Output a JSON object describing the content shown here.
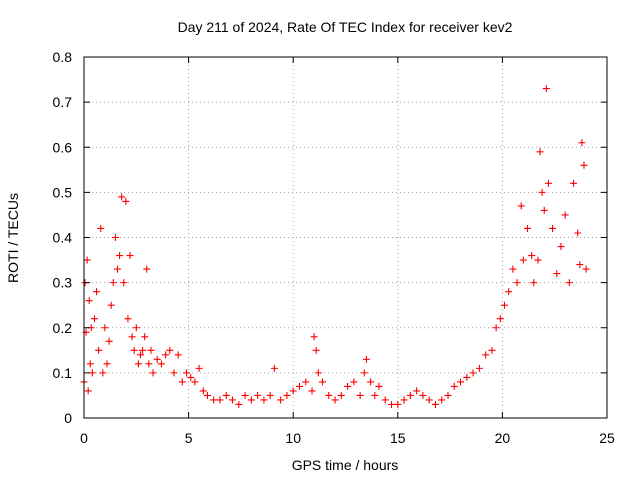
{
  "chart_data": {
    "type": "scatter",
    "title": "Day 211 of 2024, Rate Of TEC Index for receiver kev2",
    "xlabel": "GPS time / hours",
    "ylabel": "ROTI / TECUs",
    "xlim": [
      0,
      25
    ],
    "ylim": [
      0,
      0.8
    ],
    "xticks": [
      0,
      5,
      10,
      15,
      20,
      25
    ],
    "yticks": [
      0,
      0.1,
      0.2,
      0.3,
      0.4,
      0.5,
      0.6,
      0.7,
      0.8
    ],
    "xtick_labels": [
      "0",
      "5",
      "10",
      "15",
      "20",
      "25"
    ],
    "ytick_labels": [
      "0",
      "0.1",
      "0.2",
      "0.3",
      "0.4",
      "0.5",
      "0.6",
      "0.7",
      "0.8"
    ],
    "grid": true,
    "marker": "+",
    "color": "#ff0000",
    "series": [
      {
        "x": [
          0.0,
          0.05,
          0.1,
          0.15,
          0.2,
          0.25,
          0.3,
          0.35,
          0.4,
          0.5,
          0.6,
          0.7,
          0.8,
          0.9,
          1.0,
          1.1,
          1.2,
          1.3,
          1.4,
          1.5,
          1.6,
          1.7,
          1.8,
          1.9,
          2.0,
          2.1,
          2.2,
          2.3,
          2.4,
          2.5,
          2.6,
          2.7,
          2.8,
          2.9,
          3.0,
          3.1,
          3.2,
          3.3,
          3.5,
          3.7,
          3.9,
          4.1,
          4.3,
          4.5,
          4.7,
          4.9,
          5.1,
          5.3,
          5.5,
          5.7,
          5.9,
          6.2,
          6.5,
          6.8,
          7.1,
          7.4,
          7.7,
          8.0,
          8.3,
          8.6,
          8.9,
          9.1,
          9.4,
          9.7,
          10.0,
          10.3,
          10.6,
          10.9,
          11.0,
          11.1,
          11.2,
          11.4,
          11.7,
          12.0,
          12.3,
          12.6,
          12.9,
          13.2,
          13.4,
          13.5,
          13.7,
          13.9,
          14.1,
          14.4,
          14.7,
          15.0,
          15.3,
          15.6,
          15.9,
          16.2,
          16.5,
          16.8,
          17.1,
          17.4,
          17.7,
          18.0,
          18.3,
          18.6,
          18.9,
          19.2,
          19.5,
          19.7,
          19.9,
          20.1,
          20.3,
          20.5,
          20.7,
          20.9,
          21.0,
          21.2,
          21.4,
          21.5,
          21.7,
          21.8,
          21.9,
          22.0,
          22.1,
          22.2,
          22.4,
          22.6,
          22.8,
          23.0,
          23.2,
          23.4,
          23.6,
          23.7,
          23.8,
          23.9,
          24.0
        ],
        "y": [
          0.08,
          0.3,
          0.19,
          0.35,
          0.06,
          0.26,
          0.12,
          0.2,
          0.1,
          0.22,
          0.28,
          0.15,
          0.42,
          0.1,
          0.2,
          0.12,
          0.17,
          0.25,
          0.3,
          0.4,
          0.33,
          0.36,
          0.49,
          0.3,
          0.48,
          0.22,
          0.36,
          0.18,
          0.15,
          0.2,
          0.12,
          0.14,
          0.15,
          0.18,
          0.33,
          0.12,
          0.15,
          0.1,
          0.13,
          0.12,
          0.14,
          0.15,
          0.1,
          0.14,
          0.08,
          0.1,
          0.09,
          0.08,
          0.11,
          0.06,
          0.05,
          0.04,
          0.04,
          0.05,
          0.04,
          0.03,
          0.05,
          0.04,
          0.05,
          0.04,
          0.05,
          0.11,
          0.04,
          0.05,
          0.06,
          0.07,
          0.08,
          0.06,
          0.18,
          0.15,
          0.1,
          0.08,
          0.05,
          0.04,
          0.05,
          0.07,
          0.08,
          0.05,
          0.1,
          0.13,
          0.08,
          0.05,
          0.07,
          0.04,
          0.03,
          0.03,
          0.04,
          0.05,
          0.06,
          0.05,
          0.04,
          0.03,
          0.04,
          0.05,
          0.07,
          0.08,
          0.09,
          0.1,
          0.11,
          0.14,
          0.15,
          0.2,
          0.22,
          0.25,
          0.28,
          0.33,
          0.3,
          0.47,
          0.35,
          0.42,
          0.36,
          0.3,
          0.35,
          0.59,
          0.5,
          0.46,
          0.73,
          0.52,
          0.42,
          0.32,
          0.38,
          0.45,
          0.3,
          0.52,
          0.41,
          0.34,
          0.61,
          0.56,
          0.33
        ]
      }
    ]
  }
}
